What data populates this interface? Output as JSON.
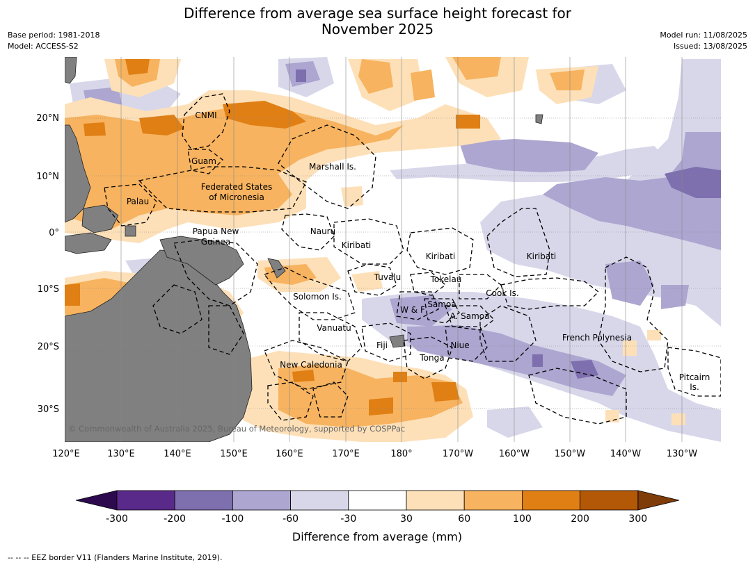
{
  "title_line1": "Difference from average sea surface height forecast for",
  "title_line2": "November 2025",
  "meta_left": [
    "Base period: 1981-2018",
    "Model: ACCESS-S2"
  ],
  "meta_right": [
    "Model run: 11/08/2025",
    "Issued: 13/08/2025"
  ],
  "lon_ticks": [
    "120°E",
    "130°E",
    "140°E",
    "150°E",
    "160°E",
    "170°E",
    "180°",
    "170°W",
    "160°W",
    "150°W",
    "140°W",
    "130°W"
  ],
  "lat_ticks": [
    "20°N",
    "10°N",
    "0°",
    "10°S",
    "20°S",
    "30°S"
  ],
  "labels": {
    "cnmi": "CNMI",
    "guam": "Guam",
    "marshall": "Marshall Is.",
    "fsm1": "Federated States",
    "fsm2": "of Micronesia",
    "palau": "Palau",
    "png1": "Papua New",
    "png2": "Guinea",
    "nauru": "Nauru",
    "kiribati_w": "Kiribati",
    "kiribati_c": "Kiribati",
    "kiribati_e": "Kiribati",
    "tuvalu": "Tuvalu",
    "tokelau": "Tokelau",
    "cook": "Cook Is.",
    "solomon": "Solomon Is.",
    "samoa": "Samoa",
    "wf": "W & F",
    "asamoa": "A. Samoa",
    "vanuatu": "Vanuatu",
    "fiji": "Fiji",
    "niue": "Niue",
    "tonga": "Tonga",
    "frpoly": "French Polynesia",
    "newcal": "New Caledonia",
    "pitcairn1": "Pitcairn",
    "pitcairn2": "Is."
  },
  "copyright": "© Commonwealth of Australia 2025, Bureau of Meteorology, supported by COSPPac",
  "colorbar": {
    "ticks": [
      "-300",
      "-200",
      "-100",
      "-60",
      "-30",
      "30",
      "60",
      "100",
      "200",
      "300"
    ],
    "colors": [
      "#5a2a8a",
      "#7e6fae",
      "#aca6d0",
      "#d8d7ea",
      "#ffffff",
      "#fde0b8",
      "#f7b35f",
      "#e07f14",
      "#b35806"
    ],
    "under_color": "#2d0a4e",
    "over_color": "#7f3b08",
    "label": "Difference from average (mm)"
  },
  "footer": "--  --  -- EEZ border V11 (Flanders Marine Institute, 2019).",
  "colors": {
    "land": "#808080",
    "grid": "#888888"
  }
}
